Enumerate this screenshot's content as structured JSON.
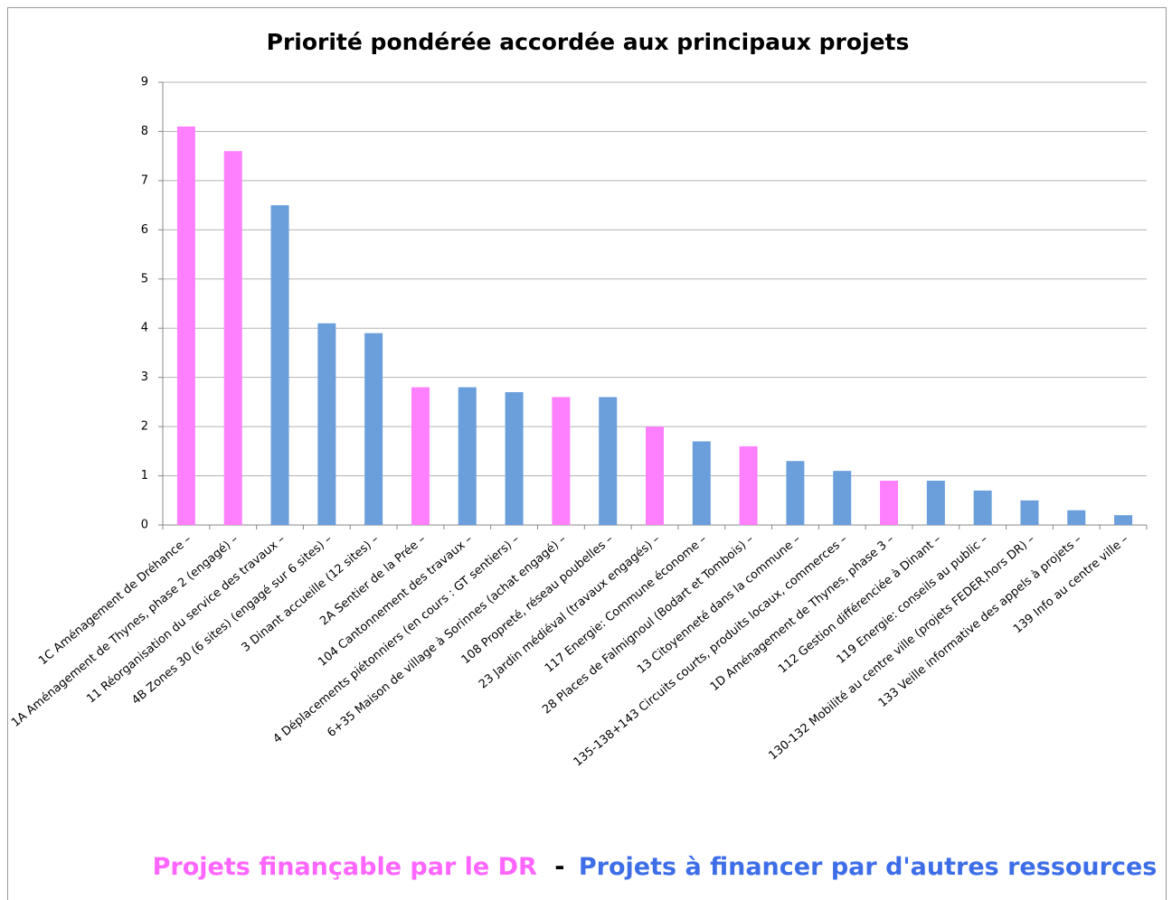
{
  "chart_data": {
    "type": "bar",
    "title": "Priorité pondérée accordée aux principaux projets",
    "categories": [
      "1C Aménagement de Dréhance –",
      "1A Aménagement de Thynes, phase 2 (engagé) –",
      "11 Réorganisation du service des travaux –",
      "4B Zones 30 (6 sites) (engagé sur 6 sites) –",
      "3 Dinant accueille (12 sites) –",
      "2A Sentier de la Prée –",
      "104 Cantonnement des travaux –",
      "4 Déplacements piétonniers (en cours : GT sentiers) –",
      "6+35 Maison de village à Sorinnes (achat engagé) –",
      "108 Propreté, réseau poubelles –",
      "23 Jardin médiéval (travaux engagés) –",
      "117 Energie: Commune économe –",
      "28 Places de Falmignoul (Bodart et Tombois) –",
      "13 Citoyenneté dans la commune –",
      "135-138+143 Circuits courts, produits locaux, commerces –",
      "1D Aménagement de Thynes, phase 3 –",
      "112 Gestion différenciée à Dinant –",
      "119 Energie: conseils au public –",
      "130-132 Mobilité au centre ville (projets FEDER,hors DR) –",
      "133 Veille informative des appels à projets –",
      "139 Info au centre ville –"
    ],
    "values": [
      8.1,
      7.6,
      6.5,
      4.1,
      3.9,
      2.8,
      2.8,
      2.7,
      2.6,
      2.6,
      2.0,
      1.7,
      1.6,
      1.3,
      1.1,
      0.9,
      0.9,
      0.7,
      0.5,
      0.3,
      0.2
    ],
    "colors": [
      "#ff80ff",
      "#ff80ff",
      "#6a9fdc",
      "#6a9fdc",
      "#6a9fdc",
      "#ff80ff",
      "#6a9fdc",
      "#6a9fdc",
      "#ff80ff",
      "#6a9fdc",
      "#ff80ff",
      "#6a9fdc",
      "#ff80ff",
      "#6a9fdc",
      "#6a9fdc",
      "#ff80ff",
      "#6a9fdc",
      "#6a9fdc",
      "#6a9fdc",
      "#6a9fdc",
      "#6a9fdc"
    ],
    "legend": [
      {
        "name": "Projets finançable par le DR",
        "color": "#ff66ff"
      },
      {
        "name": "Projets à financer par d'autres ressources",
        "color": "#3d6ee8"
      }
    ],
    "legend_separator": "-",
    "ylim": [
      0,
      9
    ],
    "yticks": [
      0,
      1,
      2,
      3,
      4,
      5,
      6,
      7,
      8,
      9
    ],
    "grid": true
  }
}
